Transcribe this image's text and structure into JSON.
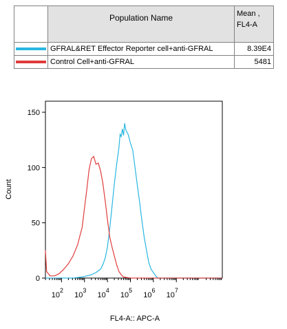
{
  "legend": {
    "header_name": "Population Name",
    "header_value": "Mean , FL4-A",
    "rows": [
      {
        "name": "GFRAL&RET Effector Reporter cell+anti-GFRAL",
        "value": "8.39E4",
        "color": "#29b6e0"
      },
      {
        "name": "Control Cell+anti-GFRAL",
        "value": "5481",
        "color": "#e03c3c"
      }
    ]
  },
  "chart_data": {
    "type": "area",
    "title": "",
    "xlabel": "FL4-A:: APC-A",
    "ylabel": "Count",
    "x_scale": "log",
    "xlim": [
      1.3,
      9.0
    ],
    "ylim": [
      0,
      160
    ],
    "y_ticks": [
      0,
      50,
      100,
      150
    ],
    "x_ticks": [
      {
        "pos": 2,
        "base": "10",
        "exp": "2"
      },
      {
        "pos": 3,
        "base": "10",
        "exp": "3"
      },
      {
        "pos": 4,
        "base": "10",
        "exp": "4"
      },
      {
        "pos": 5,
        "base": "10",
        "exp": "5"
      },
      {
        "pos": 6,
        "base": "10",
        "exp": "6"
      },
      {
        "pos": 7,
        "base": "10",
        "exp": "7"
      }
    ],
    "grid": false,
    "series": [
      {
        "name": "GFRAL&RET Effector Reporter cell+anti-GFRAL",
        "color": "#29b6e0",
        "x": [
          1.3,
          2.5,
          2.9,
          3.1,
          3.3,
          3.5,
          3.7,
          3.8,
          3.9,
          4.0,
          4.1,
          4.2,
          4.3,
          4.4,
          4.5,
          4.55,
          4.6,
          4.65,
          4.7,
          4.75,
          4.8,
          4.9,
          5.0,
          5.1,
          5.2,
          5.3,
          5.4,
          5.5,
          5.6,
          5.7,
          5.8,
          5.9,
          6.0,
          6.1,
          6.2,
          9.0
        ],
        "values": [
          0,
          0,
          1,
          2,
          3,
          5,
          8,
          12,
          18,
          28,
          45,
          65,
          85,
          103,
          118,
          130,
          128,
          135,
          129,
          140,
          134,
          130,
          122,
          116,
          100,
          84,
          69,
          52,
          37,
          25,
          14,
          8,
          5,
          2,
          0,
          0
        ]
      },
      {
        "name": "Control Cell+anti-GFRAL",
        "color": "#e03c3c",
        "x": [
          1.3,
          1.35,
          1.5,
          1.7,
          1.9,
          2.1,
          2.3,
          2.5,
          2.7,
          2.9,
          3.0,
          3.1,
          3.2,
          3.3,
          3.4,
          3.5,
          3.6,
          3.7,
          3.8,
          3.9,
          4.0,
          4.1,
          4.2,
          4.3,
          4.4,
          4.5,
          4.6,
          4.7,
          5.0,
          9.0
        ],
        "values": [
          25,
          6,
          2,
          2,
          4,
          8,
          13,
          20,
          30,
          46,
          63,
          80,
          98,
          108,
          110,
          103,
          104,
          97,
          86,
          70,
          53,
          37,
          28,
          20,
          12,
          6,
          3,
          1,
          0,
          0
        ]
      }
    ]
  }
}
